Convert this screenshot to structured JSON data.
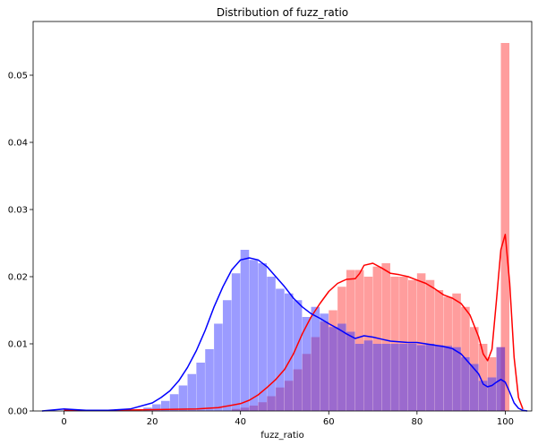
{
  "chart_data": {
    "type": "histogram",
    "title": "Distribution of fuzz_ratio",
    "xlabel": "fuzz_ratio",
    "ylabel": "",
    "xlim": [
      -7,
      106
    ],
    "ylim": [
      0,
      0.058
    ],
    "x_ticks": [
      "0",
      "20",
      "40",
      "60",
      "80",
      "100"
    ],
    "y_ticks": [
      "0.00",
      "0.01",
      "0.02",
      "0.03",
      "0.04",
      "0.05"
    ],
    "grid": false,
    "legend": "none",
    "series": [
      {
        "color": "#ff0000",
        "bin_width": 2,
        "bins": [
          [
            38,
            0.0003
          ],
          [
            40,
            0.0005
          ],
          [
            42,
            0.0008
          ],
          [
            44,
            0.0013
          ],
          [
            46,
            0.0022
          ],
          [
            48,
            0.0035
          ],
          [
            50,
            0.0045
          ],
          [
            52,
            0.0062
          ],
          [
            54,
            0.0085
          ],
          [
            56,
            0.011
          ],
          [
            58,
            0.0133
          ],
          [
            60,
            0.015
          ],
          [
            62,
            0.0185
          ],
          [
            64,
            0.021
          ],
          [
            66,
            0.021
          ],
          [
            68,
            0.02
          ],
          [
            70,
            0.0215
          ],
          [
            72,
            0.022
          ],
          [
            74,
            0.02
          ],
          [
            76,
            0.02
          ],
          [
            78,
            0.0195
          ],
          [
            80,
            0.0205
          ],
          [
            82,
            0.0195
          ],
          [
            84,
            0.018
          ],
          [
            86,
            0.017
          ],
          [
            88,
            0.0175
          ],
          [
            90,
            0.0155
          ],
          [
            92,
            0.0125
          ],
          [
            94,
            0.01
          ],
          [
            96,
            0.008
          ],
          [
            98,
            0.0095
          ],
          [
            99,
            0.0548
          ]
        ],
        "kde": [
          [
            0,
            0.0001
          ],
          [
            10,
            0.0001
          ],
          [
            20,
            0.0002
          ],
          [
            30,
            0.0003
          ],
          [
            35,
            0.0005
          ],
          [
            40,
            0.0011
          ],
          [
            42,
            0.0016
          ],
          [
            44,
            0.0024
          ],
          [
            46,
            0.0035
          ],
          [
            48,
            0.0047
          ],
          [
            50,
            0.0062
          ],
          [
            52,
            0.0085
          ],
          [
            54,
            0.0115
          ],
          [
            56,
            0.014
          ],
          [
            58,
            0.016
          ],
          [
            60,
            0.0178
          ],
          [
            62,
            0.019
          ],
          [
            64,
            0.0196
          ],
          [
            66,
            0.0197
          ],
          [
            67,
            0.0205
          ],
          [
            68,
            0.0217
          ],
          [
            70,
            0.022
          ],
          [
            72,
            0.0213
          ],
          [
            74,
            0.0205
          ],
          [
            76,
            0.0203
          ],
          [
            78,
            0.02
          ],
          [
            80,
            0.0195
          ],
          [
            82,
            0.019
          ],
          [
            84,
            0.0182
          ],
          [
            86,
            0.0173
          ],
          [
            88,
            0.0168
          ],
          [
            90,
            0.016
          ],
          [
            92,
            0.0143
          ],
          [
            94,
            0.011
          ],
          [
            95,
            0.0085
          ],
          [
            96,
            0.0075
          ],
          [
            97,
            0.0092
          ],
          [
            98,
            0.0165
          ],
          [
            99,
            0.024
          ],
          [
            100,
            0.0263
          ],
          [
            101,
            0.019
          ],
          [
            102,
            0.008
          ],
          [
            103,
            0.002
          ],
          [
            104,
            0.0003
          ]
        ]
      },
      {
        "color": "#0000ff",
        "bin_width": 2,
        "bins": [
          [
            18,
            0.0005
          ],
          [
            20,
            0.001
          ],
          [
            22,
            0.0015
          ],
          [
            24,
            0.0025
          ],
          [
            26,
            0.0038
          ],
          [
            28,
            0.0055
          ],
          [
            30,
            0.0072
          ],
          [
            32,
            0.0092
          ],
          [
            34,
            0.013
          ],
          [
            36,
            0.0165
          ],
          [
            38,
            0.0205
          ],
          [
            40,
            0.024
          ],
          [
            42,
            0.0225
          ],
          [
            44,
            0.022
          ],
          [
            46,
            0.02
          ],
          [
            48,
            0.0182
          ],
          [
            50,
            0.0175
          ],
          [
            52,
            0.0165
          ],
          [
            54,
            0.014
          ],
          [
            56,
            0.0155
          ],
          [
            58,
            0.0145
          ],
          [
            60,
            0.0125
          ],
          [
            62,
            0.013
          ],
          [
            64,
            0.0118
          ],
          [
            66,
            0.01
          ],
          [
            68,
            0.0105
          ],
          [
            70,
            0.01
          ],
          [
            72,
            0.01
          ],
          [
            74,
            0.01
          ],
          [
            76,
            0.01
          ],
          [
            78,
            0.01
          ],
          [
            80,
            0.0098
          ],
          [
            82,
            0.01
          ],
          [
            84,
            0.0098
          ],
          [
            86,
            0.0097
          ],
          [
            88,
            0.0095
          ],
          [
            90,
            0.008
          ],
          [
            92,
            0.007
          ],
          [
            94,
            0.0045
          ],
          [
            96,
            0.005
          ],
          [
            98,
            0.0095
          ]
        ],
        "kde": [
          [
            -5,
            0.0
          ],
          [
            0,
            0.0003
          ],
          [
            5,
            0.0001
          ],
          [
            10,
            0.0001
          ],
          [
            15,
            0.0003
          ],
          [
            20,
            0.0012
          ],
          [
            22,
            0.002
          ],
          [
            24,
            0.003
          ],
          [
            26,
            0.0045
          ],
          [
            28,
            0.0065
          ],
          [
            30,
            0.009
          ],
          [
            32,
            0.012
          ],
          [
            34,
            0.0155
          ],
          [
            36,
            0.0185
          ],
          [
            38,
            0.021
          ],
          [
            40,
            0.0225
          ],
          [
            42,
            0.0228
          ],
          [
            44,
            0.0225
          ],
          [
            46,
            0.0215
          ],
          [
            48,
            0.02
          ],
          [
            50,
            0.0185
          ],
          [
            52,
            0.0168
          ],
          [
            54,
            0.0155
          ],
          [
            56,
            0.0145
          ],
          [
            58,
            0.0138
          ],
          [
            60,
            0.013
          ],
          [
            62,
            0.0123
          ],
          [
            64,
            0.0115
          ],
          [
            66,
            0.0108
          ],
          [
            68,
            0.0112
          ],
          [
            70,
            0.011
          ],
          [
            72,
            0.0107
          ],
          [
            74,
            0.0104
          ],
          [
            76,
            0.0103
          ],
          [
            78,
            0.0102
          ],
          [
            80,
            0.0102
          ],
          [
            82,
            0.01
          ],
          [
            84,
            0.0098
          ],
          [
            86,
            0.0096
          ],
          [
            88,
            0.0093
          ],
          [
            90,
            0.0085
          ],
          [
            92,
            0.007
          ],
          [
            94,
            0.0055
          ],
          [
            95,
            0.004
          ],
          [
            96,
            0.0036
          ],
          [
            97,
            0.0038
          ],
          [
            98,
            0.0043
          ],
          [
            99,
            0.0047
          ],
          [
            100,
            0.0043
          ],
          [
            101,
            0.0028
          ],
          [
            102,
            0.0012
          ],
          [
            103,
            0.0004
          ],
          [
            104,
            0.0001
          ],
          [
            105,
            0.0
          ]
        ]
      }
    ]
  }
}
